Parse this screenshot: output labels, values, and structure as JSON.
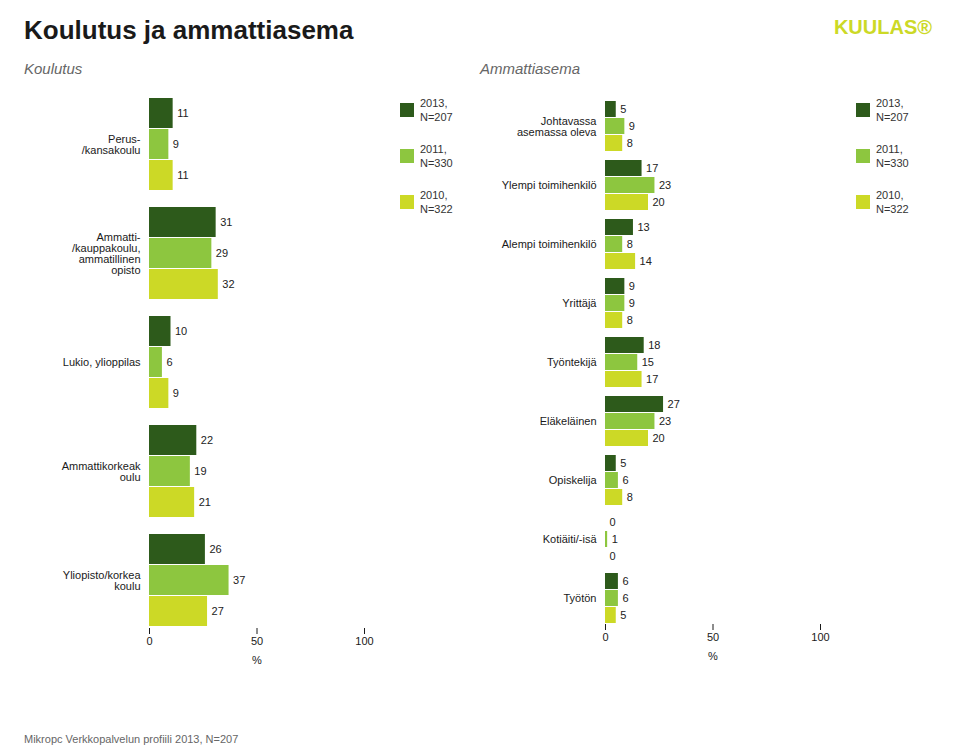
{
  "chart_data": [
    {
      "type": "bar",
      "orientation": "horizontal",
      "title": "Koulutus ja ammattiasema",
      "subtitle": "Koulutus",
      "categories": [
        "Perus-\n/kansakoulu",
        "Ammatti-\n/kauppakoulu,\nammatillinen\nopisto",
        "Lukio, ylioppilas",
        "Ammattikorkeak\noulu",
        "Yliopisto/korkea\nkoulu"
      ],
      "series": [
        {
          "name": "2013,\nN=207",
          "color": "#2d5a1b",
          "values": [
            11,
            31,
            10,
            22,
            26
          ]
        },
        {
          "name": "2011,\nN=330",
          "color": "#8dc63f",
          "values": [
            9,
            29,
            6,
            19,
            37
          ]
        },
        {
          "name": "2010,\nN=322",
          "color": "#ccd926",
          "values": [
            11,
            32,
            9,
            21,
            27
          ]
        }
      ],
      "xlabel": "%",
      "xlim": [
        0,
        100
      ],
      "xticks": [
        0,
        50,
        100
      ],
      "grid": false,
      "legend": "right",
      "data_labels": true,
      "annotations": [
        {
          "text": "KUULAS®",
          "color": "#ccd926"
        },
        {
          "text": "Mikropc Verkkopalvelun profiili 2013, N=207"
        }
      ]
    },
    {
      "type": "bar",
      "orientation": "horizontal",
      "subtitle": "Ammattiasema",
      "categories": [
        "Johtavassa\nasemassa oleva",
        "Ylempi toimihenkilö",
        "Alempi toimihenkilö",
        "Yrittäjä",
        "Työntekijä",
        "Eläkeläinen",
        "Opiskelija",
        "Kotiäiti/-isä",
        "Työtön"
      ],
      "series": [
        {
          "name": "2013,\nN=207",
          "color": "#2d5a1b",
          "values": [
            5,
            17,
            13,
            9,
            18,
            27,
            5,
            0,
            6
          ]
        },
        {
          "name": "2011,\nN=330",
          "color": "#8dc63f",
          "values": [
            9,
            23,
            8,
            9,
            15,
            23,
            6,
            1,
            6
          ]
        },
        {
          "name": "2010,\nN=322",
          "color": "#ccd926",
          "values": [
            8,
            20,
            14,
            8,
            17,
            20,
            8,
            0,
            5
          ]
        }
      ],
      "xlabel": "%",
      "xlim": [
        0,
        100
      ],
      "xticks": [
        0,
        50,
        100
      ],
      "grid": false,
      "legend": "right",
      "data_labels": true
    }
  ]
}
